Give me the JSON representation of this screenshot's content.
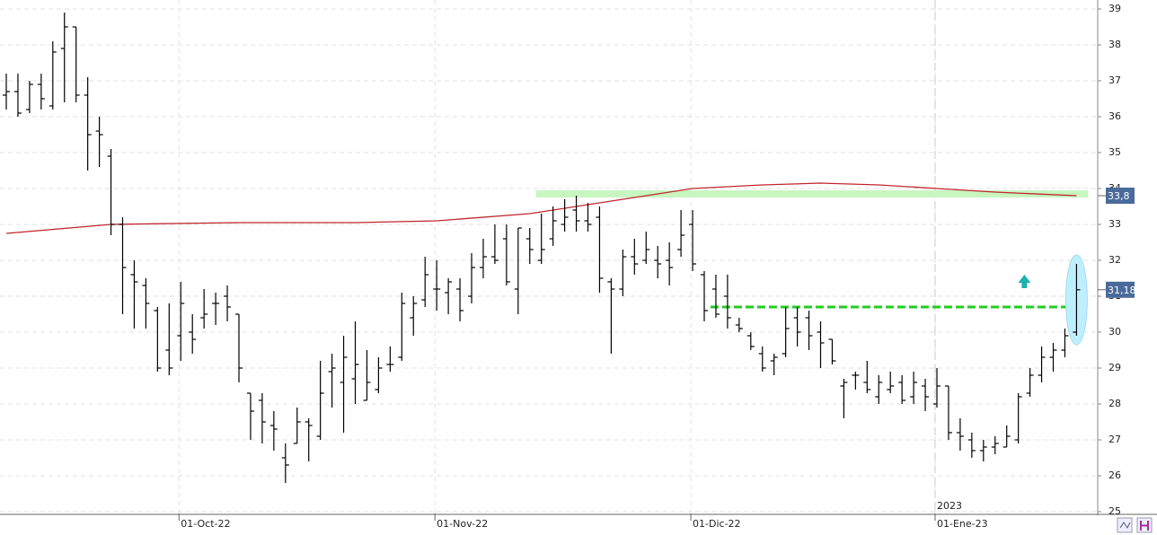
{
  "chart_data": {
    "type": "ohlc",
    "color": "#000000",
    "categories": [
      null,
      null,
      null,
      null,
      null,
      null,
      null,
      null,
      null,
      null,
      null,
      null,
      null,
      null,
      null,
      "01-Oct-22",
      null,
      null,
      null,
      null,
      null,
      null,
      null,
      null,
      null,
      null,
      null,
      null,
      null,
      null,
      null,
      null,
      null,
      null,
      null,
      null,
      null,
      "01-Nov-22",
      null,
      null,
      null,
      null,
      null,
      null,
      null,
      null,
      null,
      null,
      null,
      null,
      null,
      null,
      null,
      null,
      null,
      null,
      null,
      null,
      null,
      "01-Dic-22",
      null,
      null,
      null,
      null,
      null,
      null,
      null,
      null,
      null,
      null,
      null,
      null,
      null,
      null,
      null,
      null,
      null,
      null,
      null,
      null,
      "01-Ene-23",
      null,
      null,
      null,
      null,
      null,
      null,
      null,
      null,
      null,
      null,
      null,
      null
    ],
    "year_label": {
      "text": "2023",
      "index": 80
    },
    "open": [
      36.6,
      36.7,
      36.2,
      36.9,
      36.3,
      37.9,
      38.5,
      36.6,
      35.6,
      34.9,
      33.0,
      31.6,
      31.3,
      30.6,
      29.5,
      29.9,
      30.0,
      30.4,
      30.8,
      31.0,
      30.5,
      28.3,
      28.1,
      27.4,
      26.5,
      26.9,
      27.5,
      27.1,
      28.9,
      28.6,
      28.7,
      28.1,
      28.4,
      29.1,
      29.3,
      30.4,
      30.9,
      31.2,
      31.1,
      31.2,
      31.0,
      31.8,
      32.1,
      32.6,
      31.2,
      32.6,
      32.0,
      32.6,
      33.0,
      33.4,
      33.1,
      33.2,
      31.4,
      31.2,
      32.1,
      32.0,
      32.0,
      32.0,
      32.3,
      33.0,
      31.6,
      31.2,
      31.0,
      30.2,
      29.9,
      29.4,
      29.2,
      29.4,
      30.4,
      30.4,
      30.0,
      29.8,
      28.5,
      28.8,
      28.6,
      28.2,
      28.4,
      28.6,
      28.2,
      28.5,
      28.0,
      28.5,
      27.2,
      27.0,
      26.7,
      26.8,
      26.8,
      27.0,
      28.3,
      28.8,
      29.3,
      29.5,
      30.0
    ],
    "high": [
      37.2,
      37.2,
      37.0,
      37.2,
      38.1,
      38.9,
      38.5,
      37.1,
      36.0,
      35.1,
      33.2,
      32.0,
      31.5,
      30.7,
      30.8,
      31.4,
      30.5,
      31.2,
      31.1,
      31.3,
      30.5,
      28.3,
      28.3,
      27.8,
      26.9,
      27.9,
      27.6,
      29.2,
      29.4,
      29.9,
      30.3,
      29.5,
      29.3,
      29.6,
      31.1,
      31.0,
      32.1,
      32.0,
      31.5,
      31.5,
      32.2,
      32.6,
      33.0,
      33.0,
      32.9,
      32.9,
      33.3,
      33.5,
      33.7,
      33.8,
      33.6,
      33.5,
      31.5,
      32.3,
      32.6,
      32.8,
      32.4,
      32.5,
      33.4,
      33.4,
      31.7,
      31.6,
      31.6,
      30.4,
      30.0,
      29.6,
      29.4,
      30.7,
      30.7,
      30.6,
      30.3,
      29.8,
      28.7,
      28.9,
      29.2,
      28.8,
      28.9,
      28.8,
      28.9,
      28.7,
      29.0,
      28.5,
      27.6,
      27.2,
      27.0,
      27.1,
      27.4,
      28.3,
      29.0,
      29.6,
      29.7,
      30.1,
      31.9
    ],
    "low": [
      36.2,
      36.0,
      36.1,
      36.2,
      36.2,
      36.4,
      36.4,
      34.5,
      34.6,
      32.7,
      30.5,
      30.1,
      30.1,
      28.9,
      28.8,
      29.2,
      29.4,
      30.1,
      30.2,
      30.3,
      28.6,
      27.0,
      26.9,
      26.7,
      25.8,
      26.9,
      26.4,
      27.0,
      27.9,
      27.2,
      28.0,
      28.1,
      28.3,
      28.9,
      29.2,
      29.9,
      30.7,
      30.6,
      30.5,
      30.3,
      30.8,
      31.5,
      31.9,
      31.3,
      30.5,
      31.9,
      31.9,
      32.4,
      32.8,
      32.8,
      32.8,
      31.1,
      29.4,
      31.0,
      31.6,
      31.9,
      31.5,
      31.3,
      32.1,
      31.7,
      30.3,
      30.4,
      30.1,
      30.0,
      29.5,
      28.9,
      28.8,
      29.3,
      29.6,
      29.5,
      29.0,
      29.1,
      27.6,
      28.4,
      28.3,
      28.0,
      28.3,
      28.0,
      28.0,
      27.8,
      27.9,
      27.0,
      26.7,
      26.5,
      26.4,
      26.6,
      26.8,
      26.9,
      28.2,
      28.6,
      28.9,
      29.3,
      29.9
    ],
    "close": [
      36.7,
      36.1,
      36.9,
      36.5,
      37.8,
      38.5,
      36.6,
      35.5,
      35.5,
      33.0,
      31.8,
      31.4,
      30.8,
      29.0,
      29.0,
      30.8,
      29.8,
      30.5,
      30.8,
      30.7,
      29.0,
      27.8,
      27.5,
      27.3,
      26.3,
      27.5,
      27.4,
      28.3,
      29.0,
      29.3,
      29.1,
      28.6,
      29.0,
      29.1,
      30.8,
      30.8,
      31.6,
      31.2,
      31.4,
      30.6,
      31.8,
      32.1,
      32.0,
      31.4,
      32.9,
      32.3,
      32.3,
      33.1,
      33.2,
      33.1,
      33.0,
      31.5,
      31.2,
      32.1,
      31.9,
      32.3,
      31.9,
      31.8,
      32.7,
      31.9,
      30.6,
      30.5,
      30.4,
      30.1,
      29.6,
      29.0,
      29.3,
      30.1,
      30.0,
      29.9,
      29.7,
      29.2,
      28.6,
      28.8,
      28.4,
      28.6,
      28.5,
      28.1,
      28.6,
      28.2,
      28.5,
      27.2,
      27.1,
      26.7,
      26.8,
      26.9,
      27.1,
      28.2,
      28.8,
      29.3,
      29.5,
      29.9,
      31.18
    ],
    "moving_average": {
      "color": "#c0272d",
      "x": [
        0,
        9,
        20,
        30,
        37,
        45,
        50,
        55,
        59,
        65,
        70,
        75,
        80,
        85,
        92
      ],
      "values": [
        32.75,
        33.0,
        33.05,
        33.05,
        33.1,
        33.3,
        33.55,
        33.8,
        34.0,
        34.1,
        34.15,
        34.1,
        34.0,
        33.9,
        33.8
      ]
    },
    "level_lines": [
      {
        "value": 33.85,
        "from": 46,
        "to": 93,
        "color": "#c8f5c0",
        "style": "band"
      },
      {
        "value": 30.7,
        "from": 61,
        "to": 92,
        "color": "#22cc22",
        "style": "dashed"
      }
    ],
    "price_labels": [
      {
        "value": 33.8,
        "label": "33,8",
        "color": "#4a6a9a"
      },
      {
        "value": 31.18,
        "label": "31,18",
        "color": "#4a6a9a"
      }
    ],
    "ylim": [
      24.95,
      39.25
    ],
    "yticks": [
      25,
      26,
      27,
      28,
      29,
      30,
      31,
      32,
      33,
      34,
      35,
      36,
      37,
      38,
      39
    ],
    "grid": true
  }
}
